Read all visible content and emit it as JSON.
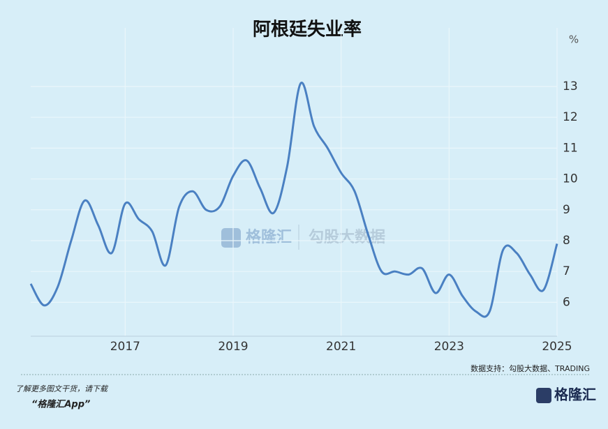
{
  "chart_data": {
    "type": "line",
    "title": "阿根廷失业率",
    "unit": "%",
    "x": [
      2015.25,
      2015.5,
      2015.75,
      2016.0,
      2016.25,
      2016.5,
      2016.75,
      2017.0,
      2017.25,
      2017.5,
      2017.75,
      2018.0,
      2018.25,
      2018.5,
      2018.75,
      2019.0,
      2019.25,
      2019.5,
      2019.75,
      2020.0,
      2020.25,
      2020.5,
      2020.75,
      2021.0,
      2021.25,
      2021.5,
      2021.75,
      2022.0,
      2022.25,
      2022.5,
      2022.75,
      2023.0,
      2023.25,
      2023.5,
      2023.75,
      2024.0,
      2024.25,
      2024.5,
      2024.75,
      2025.0
    ],
    "values": [
      6.6,
      5.9,
      6.5,
      8.0,
      9.3,
      8.5,
      7.6,
      9.2,
      8.7,
      8.3,
      7.2,
      9.1,
      9.6,
      9.0,
      9.1,
      10.1,
      10.6,
      9.7,
      8.9,
      10.4,
      13.1,
      11.7,
      11.0,
      10.2,
      9.6,
      8.2,
      7.0,
      7.0,
      6.9,
      7.1,
      6.3,
      6.9,
      6.2,
      5.7,
      5.7,
      7.7,
      7.6,
      6.9,
      6.4,
      7.9
    ],
    "color": "#4a80c2",
    "xlim": [
      2015.25,
      2025
    ],
    "xticks": [
      2017,
      2019,
      2021,
      2023,
      2025
    ],
    "ylim": [
      4.9,
      14.9
    ],
    "yticks": [
      6,
      7,
      8,
      9,
      10,
      11,
      12,
      13
    ],
    "grid": true,
    "source": "数据支持：勾股大数据、TRADING",
    "watermark": [
      "格隆汇",
      "勾股大数据"
    ]
  },
  "footer": {
    "line1": "了解更多图文干货，请下载",
    "line2": "“格隆汇App”",
    "logo": "格隆汇"
  }
}
